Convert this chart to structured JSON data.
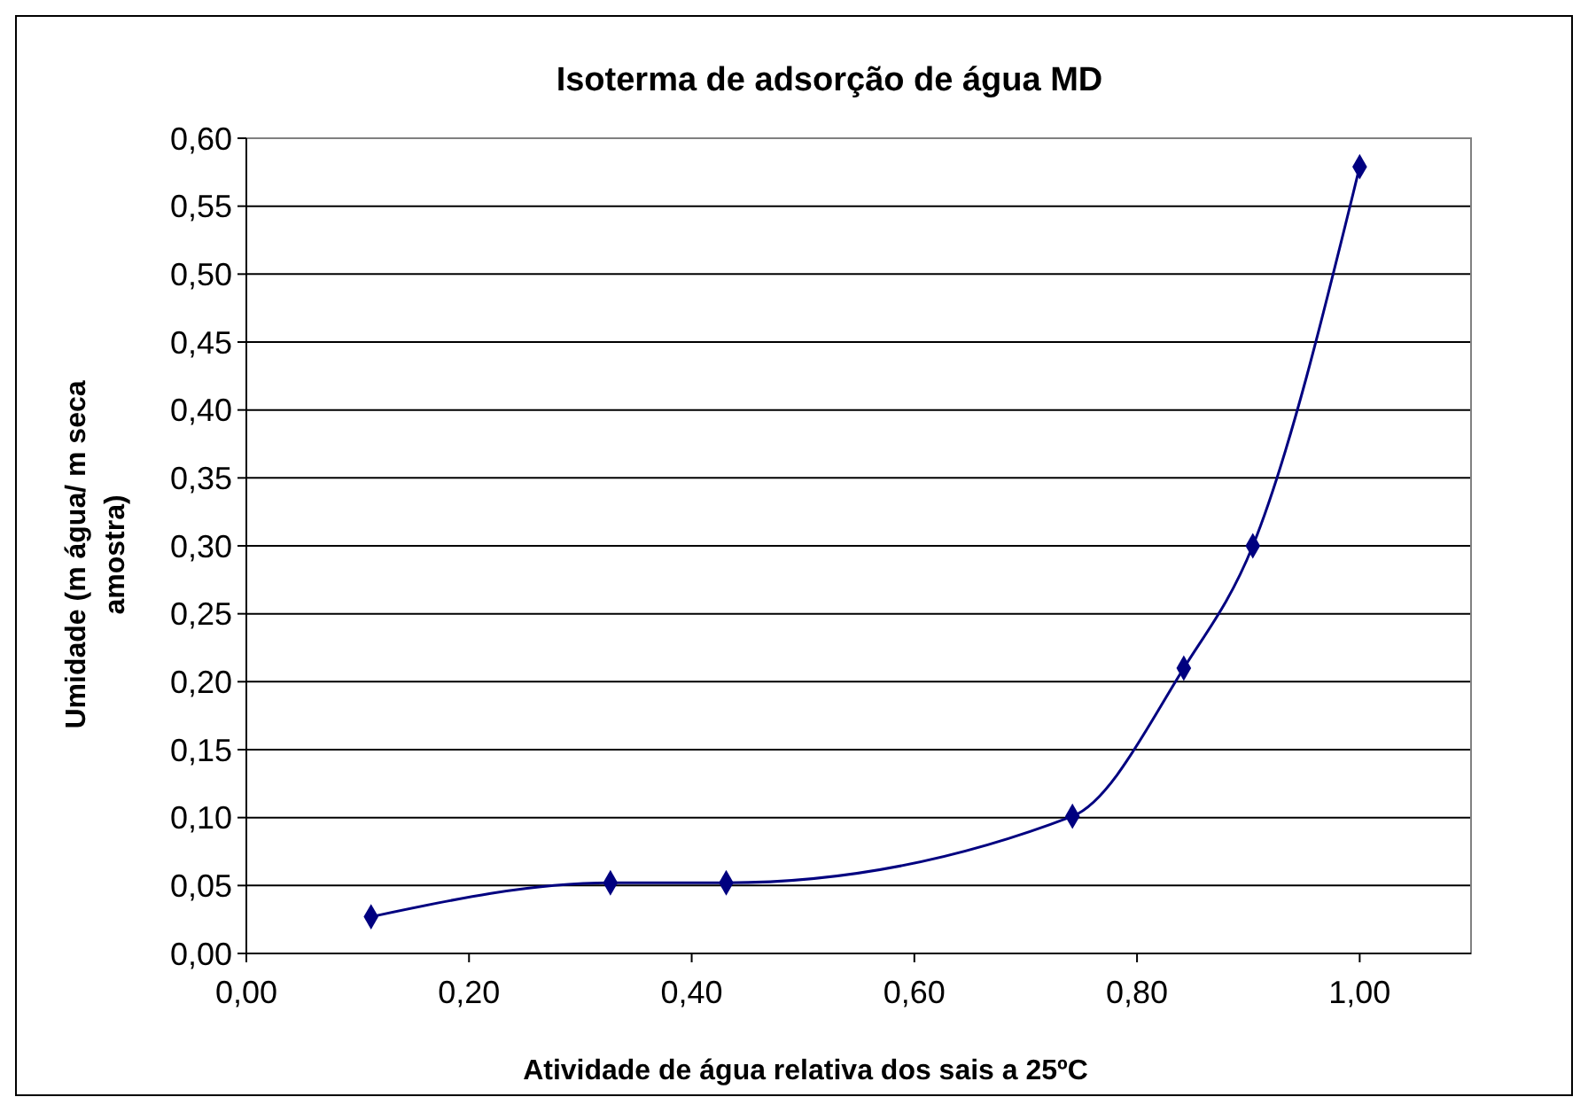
{
  "chart_data": {
    "type": "line",
    "title": "Isoterma de adsorção de água MD",
    "xlabel": "Atividade de água relativa dos sais a 25ºC",
    "ylabel": "Umidade (m água/ m seca amostra)",
    "x": [
      0.112,
      0.327,
      0.431,
      0.742,
      0.842,
      0.904,
      1.0
    ],
    "series": [
      {
        "color": "#000080",
        "values": [
          0.027,
          0.052,
          0.052,
          0.101,
          0.21,
          0.3,
          0.579
        ]
      }
    ],
    "xlim": [
      0,
      1.1
    ],
    "xticks": [
      {
        "value": 0,
        "label": "0,00"
      },
      {
        "value": 0.2,
        "label": "0,20"
      },
      {
        "value": 0.4,
        "label": "0,40"
      },
      {
        "value": 0.6,
        "label": "0,60"
      },
      {
        "value": 0.8,
        "label": "0,80"
      },
      {
        "value": 1.0,
        "label": "1,00"
      }
    ],
    "ylim": [
      0,
      0.6
    ],
    "yticks": [
      {
        "value": 0,
        "label": "0,00"
      },
      {
        "value": 0.05,
        "label": "0,05"
      },
      {
        "value": 0.1,
        "label": "0,10"
      },
      {
        "value": 0.15,
        "label": "0,15"
      },
      {
        "value": 0.2,
        "label": "0,20"
      },
      {
        "value": 0.25,
        "label": "0,25"
      },
      {
        "value": 0.3,
        "label": "0,30"
      },
      {
        "value": 0.35,
        "label": "0,35"
      },
      {
        "value": 0.4,
        "label": "0,40"
      },
      {
        "value": 0.45,
        "label": "0,45"
      },
      {
        "value": 0.5,
        "label": "0,50"
      },
      {
        "value": 0.55,
        "label": "0,55"
      },
      {
        "value": 0.6,
        "label": "0,60"
      }
    ],
    "grid": "y",
    "marker": "diamond",
    "line_style": "solid"
  }
}
